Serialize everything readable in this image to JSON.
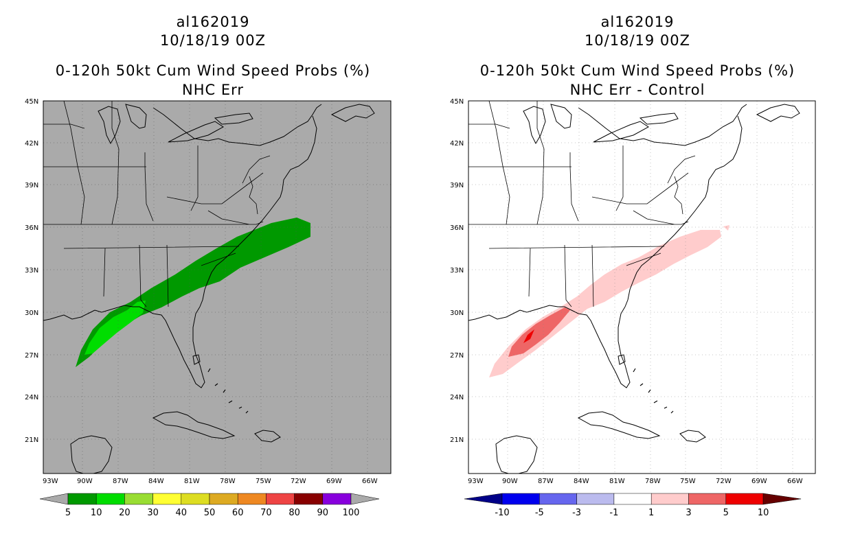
{
  "panels": [
    {
      "id": "left",
      "storm_id": "al162019",
      "datetime": "10/18/19 00Z",
      "product": "0-120h 50kt Cum Wind Speed Probs (%)",
      "subtitle": "NHC Err",
      "map_background": "#aaaaaa",
      "lat_labels": [
        "45N",
        "42N",
        "39N",
        "36N",
        "33N",
        "30N",
        "27N",
        "24N",
        "21N"
      ],
      "lon_labels": [
        "93W",
        "90W",
        "87W",
        "84W",
        "81W",
        "78W",
        "75W",
        "72W",
        "69W",
        "66W"
      ],
      "colorbar": {
        "colors": [
          "#009900",
          "#00dd00",
          "#99dd33",
          "#ffff33",
          "#dddd22",
          "#ddaa22",
          "#ee8822",
          "#ee4444",
          "#880000",
          "#8800dd"
        ],
        "end_low": "#aaaaaa",
        "end_high": "#aaaaaa",
        "labels": [
          "5",
          "10",
          "20",
          "30",
          "40",
          "50",
          "60",
          "70",
          "80",
          "90",
          "100"
        ]
      }
    },
    {
      "id": "right",
      "storm_id": "al162019",
      "datetime": "10/18/19 00Z",
      "product": "0-120h 50kt Cum Wind Speed Probs (%)",
      "subtitle": "NHC Err - Control",
      "map_background": "#ffffff",
      "lat_labels": [
        "45N",
        "42N",
        "39N",
        "36N",
        "33N",
        "30N",
        "27N",
        "24N",
        "21N"
      ],
      "lon_labels": [
        "93W",
        "90W",
        "87W",
        "84W",
        "81W",
        "78W",
        "75W",
        "72W",
        "69W",
        "66W"
      ],
      "colorbar": {
        "colors": [
          "#0000ee",
          "#6666ee",
          "#bbbbee",
          "#ffffff",
          "#ffcccc",
          "#ee6666",
          "#ee0000"
        ],
        "end_low": "#000088",
        "end_high": "#660000",
        "labels": [
          "-10",
          "-5",
          "-3",
          "-1",
          "1",
          "3",
          "5",
          "10"
        ]
      }
    }
  ]
}
